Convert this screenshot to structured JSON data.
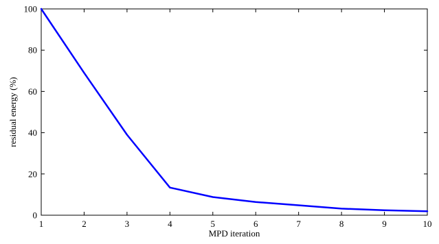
{
  "chart_data": {
    "type": "line",
    "title": "",
    "xlabel": "MPD iteration",
    "ylabel": "residual energy (%)",
    "xlim": [
      1,
      10
    ],
    "ylim": [
      0,
      100
    ],
    "x_ticks": [
      1,
      2,
      3,
      4,
      5,
      6,
      7,
      8,
      9,
      10
    ],
    "y_ticks": [
      0,
      20,
      40,
      60,
      80,
      100
    ],
    "grid": false,
    "legend": "none",
    "series": [
      {
        "color": "#0000ff",
        "x": [
          1,
          2,
          3,
          4,
          5,
          6,
          7,
          8,
          9,
          10
        ],
        "values": [
          100,
          69,
          39,
          13.4,
          8.8,
          6.4,
          4.8,
          3.2,
          2.4,
          1.9
        ]
      }
    ]
  }
}
